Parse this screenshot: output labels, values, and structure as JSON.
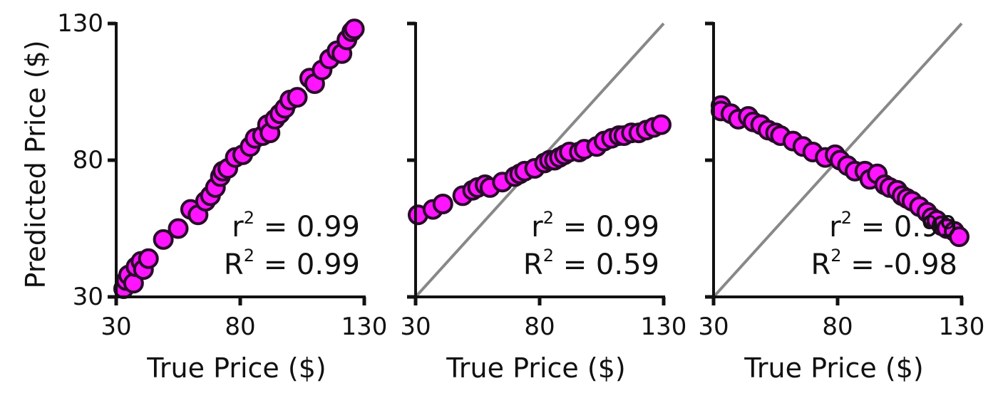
{
  "figure": {
    "ylabel": "Predicted Price ($)",
    "colors": {
      "point_fill": "#ff14ff",
      "point_edge": "#2a0a2a",
      "identity_line": "#888888",
      "axis": "#111111"
    }
  },
  "chart_data": [
    {
      "type": "scatter",
      "xlabel": "True Price ($)",
      "ylabel": "Predicted Price ($)",
      "xlim": [
        30,
        130
      ],
      "ylim": [
        30,
        130
      ],
      "xticks": [
        "30",
        "80",
        "130"
      ],
      "yticks": [
        "30",
        "80",
        "130"
      ],
      "show_identity_line": false,
      "annotation": {
        "r2_label": "r",
        "r2_value": "0.99",
        "R2_label": "R",
        "R2_value": "0.99",
        "exponent": "2",
        "equals": "="
      },
      "points": [
        [
          33,
          33
        ],
        [
          34,
          36
        ],
        [
          35,
          38
        ],
        [
          37,
          35
        ],
        [
          38,
          41
        ],
        [
          40,
          43
        ],
        [
          41,
          40
        ],
        [
          43,
          44
        ],
        [
          49,
          51
        ],
        [
          55,
          55
        ],
        [
          60,
          62
        ],
        [
          63,
          60
        ],
        [
          66,
          65
        ],
        [
          68,
          67
        ],
        [
          70,
          70
        ],
        [
          72,
          74
        ],
        [
          73,
          76
        ],
        [
          75,
          77
        ],
        [
          78,
          81
        ],
        [
          81,
          82
        ],
        [
          84,
          85
        ],
        [
          86,
          88
        ],
        [
          89,
          89
        ],
        [
          91,
          93
        ],
        [
          92,
          90
        ],
        [
          94,
          95
        ],
        [
          96,
          97
        ],
        [
          98,
          99
        ],
        [
          100,
          102
        ],
        [
          103,
          103
        ],
        [
          108,
          110
        ],
        [
          110,
          108
        ],
        [
          113,
          113
        ],
        [
          116,
          117
        ],
        [
          119,
          120
        ],
        [
          121,
          119
        ],
        [
          123,
          124
        ],
        [
          125,
          127
        ],
        [
          126,
          128
        ]
      ]
    },
    {
      "type": "scatter",
      "xlabel": "True Price ($)",
      "ylabel": "",
      "xlim": [
        30,
        130
      ],
      "ylim": [
        30,
        130
      ],
      "xticks": [
        "30",
        "80",
        "130"
      ],
      "yticks": [
        "",
        "",
        ""
      ],
      "show_identity_line": true,
      "annotation": {
        "r2_label": "r",
        "r2_value": "0.99",
        "R2_label": "R",
        "R2_value": "0.59",
        "exponent": "2",
        "equals": "="
      },
      "points": [
        [
          31,
          60
        ],
        [
          37,
          62
        ],
        [
          41,
          64
        ],
        [
          49,
          67
        ],
        [
          53,
          69
        ],
        [
          55,
          70
        ],
        [
          58,
          71
        ],
        [
          60,
          70
        ],
        [
          65,
          72
        ],
        [
          70,
          74
        ],
        [
          72,
          75
        ],
        [
          74,
          76
        ],
        [
          78,
          77
        ],
        [
          82,
          79
        ],
        [
          84,
          80
        ],
        [
          86,
          80
        ],
        [
          88,
          81
        ],
        [
          90,
          82
        ],
        [
          92,
          83
        ],
        [
          96,
          83
        ],
        [
          98,
          84
        ],
        [
          103,
          85
        ],
        [
          106,
          87
        ],
        [
          109,
          88
        ],
        [
          112,
          89
        ],
        [
          114,
          89
        ],
        [
          117,
          90
        ],
        [
          120,
          90
        ],
        [
          123,
          91
        ],
        [
          126,
          92
        ],
        [
          129,
          93
        ]
      ]
    },
    {
      "type": "scatter",
      "xlabel": "True Price ($)",
      "ylabel": "",
      "xlim": [
        30,
        130
      ],
      "ylim": [
        30,
        130
      ],
      "xticks": [
        "30",
        "80",
        "130"
      ],
      "yticks": [
        "",
        "",
        ""
      ],
      "show_identity_line": true,
      "annotation": {
        "r2_label": "r",
        "r2_value": "0.99",
        "R2_label": "R",
        "R2_value": "-0.98",
        "exponent": "2",
        "equals": "="
      },
      "points": [
        [
          33,
          100
        ],
        [
          33,
          98
        ],
        [
          37,
          97
        ],
        [
          40,
          95
        ],
        [
          44,
          96
        ],
        [
          46,
          94
        ],
        [
          49,
          93
        ],
        [
          52,
          91
        ],
        [
          55,
          90
        ],
        [
          57,
          89
        ],
        [
          62,
          87
        ],
        [
          66,
          85
        ],
        [
          70,
          83
        ],
        [
          75,
          81
        ],
        [
          79,
          82
        ],
        [
          81,
          80
        ],
        [
          84,
          78
        ],
        [
          87,
          76
        ],
        [
          91,
          76
        ],
        [
          93,
          73
        ],
        [
          96,
          75
        ],
        [
          99,
          71
        ],
        [
          101,
          70
        ],
        [
          104,
          69
        ],
        [
          106,
          67
        ],
        [
          108,
          66
        ],
        [
          110,
          65
        ],
        [
          113,
          63
        ],
        [
          116,
          61
        ],
        [
          118,
          59
        ],
        [
          120,
          58
        ],
        [
          122,
          56
        ],
        [
          124,
          55
        ],
        [
          127,
          54
        ],
        [
          129,
          52
        ]
      ]
    }
  ]
}
